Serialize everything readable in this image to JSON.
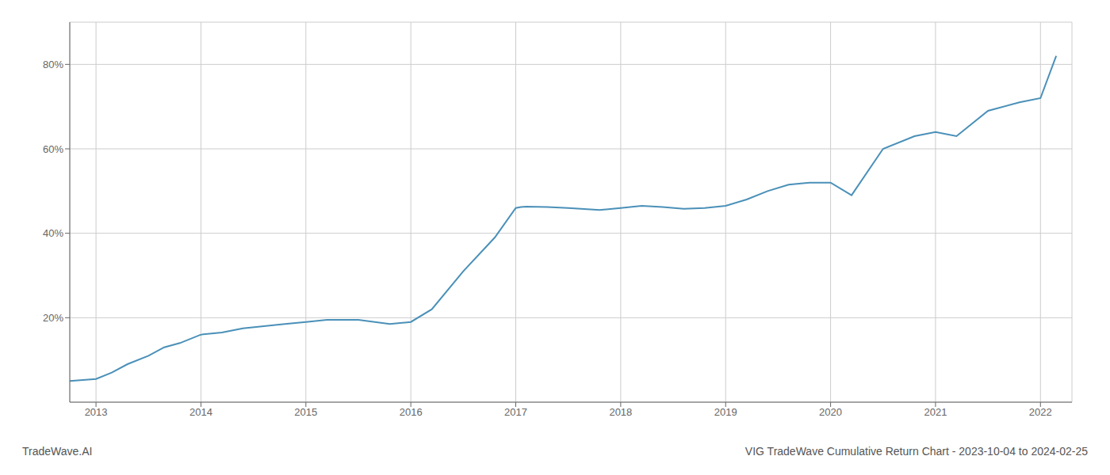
{
  "chart_data": {
    "type": "line",
    "annotations": [
      "TradeWave.AI",
      "VIG TradeWave Cumulative Return Chart - 2023-10-04 to 2024-02-25"
    ],
    "color": "#4a90b8",
    "grid": true,
    "x": [
      2012.75,
      2013.0,
      2013.15,
      2013.3,
      2013.5,
      2013.65,
      2013.8,
      2014.0,
      2014.2,
      2014.4,
      2014.6,
      2014.8,
      2015.0,
      2015.2,
      2015.5,
      2015.8,
      2016.0,
      2016.2,
      2016.5,
      2016.8,
      2017.0,
      2017.05,
      2017.1,
      2017.3,
      2017.5,
      2017.8,
      2018.0,
      2018.2,
      2018.4,
      2018.6,
      2018.8,
      2019.0,
      2019.2,
      2019.4,
      2019.6,
      2019.8,
      2020.0,
      2020.2,
      2020.5,
      2020.8,
      2021.0,
      2021.2,
      2021.5,
      2021.8,
      2022.0,
      2022.15
    ],
    "values": [
      5,
      5.5,
      7,
      9,
      11,
      13,
      14,
      16,
      16.5,
      17.5,
      18,
      18.5,
      19,
      19.5,
      19.5,
      18.5,
      19,
      22,
      31,
      39,
      46,
      46.2,
      46.3,
      46.2,
      46,
      45.5,
      46,
      46.5,
      46.2,
      45.8,
      46,
      46.5,
      48,
      50,
      51.5,
      52,
      52,
      49,
      60,
      63,
      64,
      63,
      69,
      71,
      72,
      82
    ],
    "xlim": [
      2012.75,
      2022.3
    ],
    "xticks": [
      2013,
      2014,
      2015,
      2016,
      2017,
      2018,
      2019,
      2020,
      2021,
      2022
    ],
    "ylim": [
      0,
      90
    ],
    "yticks": [
      {
        "value": 20,
        "label": "20%"
      },
      {
        "value": 40,
        "label": "40%"
      },
      {
        "value": 60,
        "label": "60%"
      },
      {
        "value": 80,
        "label": "80%"
      }
    ]
  }
}
